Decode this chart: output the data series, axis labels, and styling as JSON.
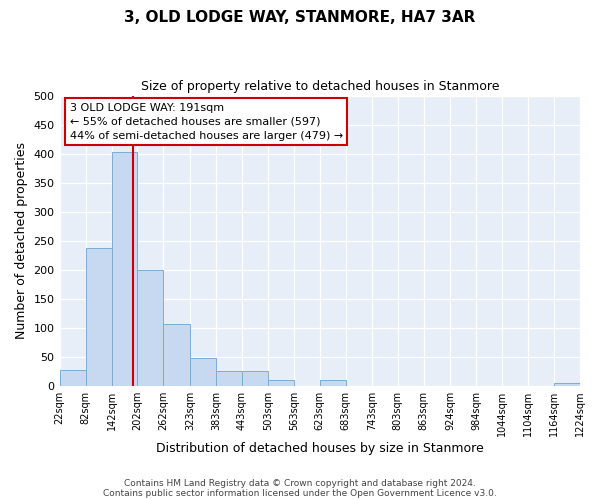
{
  "title_line1": "3, OLD LODGE WAY, STANMORE, HA7 3AR",
  "title_line2": "Size of property relative to detached houses in Stanmore",
  "xlabel": "Distribution of detached houses by size in Stanmore",
  "ylabel": "Number of detached properties",
  "bin_edges": [
    22,
    82,
    142,
    202,
    262,
    323,
    383,
    443,
    503,
    563,
    623,
    683,
    743,
    803,
    863,
    924,
    984,
    1044,
    1104,
    1164,
    1224
  ],
  "bar_heights": [
    27,
    238,
    403,
    199,
    106,
    48,
    26,
    26,
    11,
    0,
    10,
    0,
    0,
    0,
    0,
    0,
    0,
    0,
    0,
    5
  ],
  "bar_color": "#c6d9f0",
  "bar_edge_color": "#7aadd4",
  "annotation_box_text": "3 OLD LODGE WAY: 191sqm\n← 55% of detached houses are smaller (597)\n44% of semi-detached houses are larger (479) →",
  "annotation_box_color": "#ffffff",
  "annotation_box_edge_color": "#cc0000",
  "vline_x": 191,
  "vline_color": "#cc0000",
  "ylim": [
    0,
    500
  ],
  "xlim": [
    22,
    1224
  ],
  "tick_labels": [
    "22sqm",
    "82sqm",
    "142sqm",
    "202sqm",
    "262sqm",
    "323sqm",
    "383sqm",
    "443sqm",
    "503sqm",
    "563sqm",
    "623sqm",
    "683sqm",
    "743sqm",
    "803sqm",
    "863sqm",
    "924sqm",
    "984sqm",
    "1044sqm",
    "1104sqm",
    "1164sqm",
    "1224sqm"
  ],
  "background_color": "#ffffff",
  "plot_bg_color": "#e8eef8",
  "grid_color": "#ffffff",
  "footer_line1": "Contains HM Land Registry data © Crown copyright and database right 2024.",
  "footer_line2": "Contains public sector information licensed under the Open Government Licence v3.0."
}
